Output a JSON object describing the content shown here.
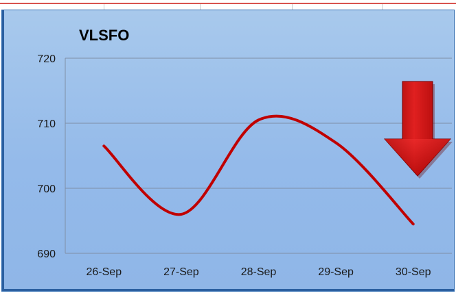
{
  "chart_data": {
    "type": "line",
    "title": "VLSFO",
    "xlabel": "",
    "ylabel": "",
    "categories": [
      "26-Sep",
      "27-Sep",
      "28-Sep",
      "29-Sep",
      "30-Sep"
    ],
    "series": [
      {
        "values": [
          706.5,
          696.0,
          710.5,
          707.0,
          694.5
        ]
      }
    ],
    "ylim": [
      690,
      720
    ],
    "yticks": [
      690,
      700,
      710,
      720
    ],
    "grid": true,
    "line_color": "#c00000",
    "smooth": true,
    "trend_indicator": "down-arrow",
    "trend_color": "#c00000"
  }
}
